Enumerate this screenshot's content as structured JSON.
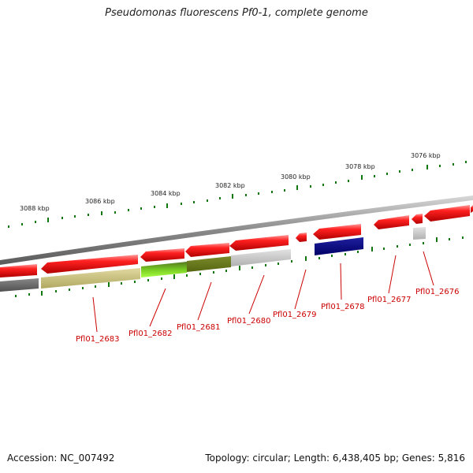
{
  "title": "Pseudomonas fluorescens Pf0-1, complete genome",
  "footer": {
    "accession": "Accession: NC_007492",
    "topology": "Topology: circular; Length: 6,438,405 bp; Genes: 5,816"
  },
  "scale_labels": [
    "3076 kbp",
    "3078 kbp",
    "3080 kbp",
    "3082 kbp",
    "3084 kbp",
    "3086 kbp",
    "3088 kbp"
  ],
  "gene_labels": [
    "Pfl01_2676",
    "Pfl01_2677",
    "Pfl01_2678",
    "Pfl01_2679",
    "Pfl01_2680",
    "Pfl01_2681",
    "Pfl01_2682",
    "Pfl01_2683"
  ],
  "colors": {
    "gene_red": "#ee1111",
    "backbone": "#888888",
    "tick_green": "#117711",
    "label_red": "#cc0000",
    "navy": "#000080",
    "olive": "#c8c07a",
    "lime": "#88ee22",
    "dark_olive": "#667722",
    "light_gray": "#c8c8c8",
    "dark_gray": "#666666"
  }
}
